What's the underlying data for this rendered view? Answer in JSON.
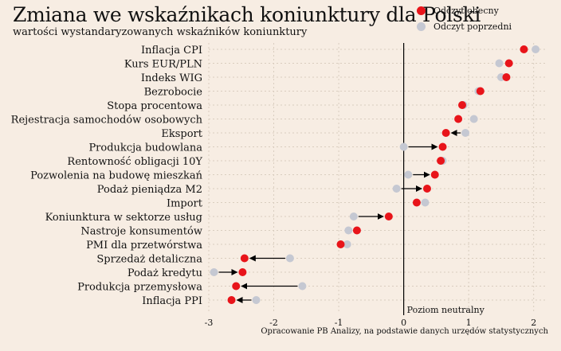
{
  "header": {
    "title": "Zmiana we wskaźnikach koniunktury dla Polski",
    "subtitle": "wartości wystandaryzowanych wskaźników koniunktury"
  },
  "legend": {
    "current": "Odczyt obecny",
    "previous": "Odczyt poprzedni"
  },
  "footer": {
    "source": "Opracowanie PB Analizy, na podstawie danych urzędów statystycznych"
  },
  "colors": {
    "current": "#e8141a",
    "previous": "#c5c8d2",
    "background": "#f7ede3",
    "grid": "#d9cdbf"
  },
  "chart_data": {
    "type": "scatter",
    "subtype": "dumbbell",
    "title": "Zmiana we wskaźnikach koniunktury dla Polski",
    "subtitle": "wartości wystandaryzowanych wskaźników koniunktury",
    "xlim": [
      -3.0,
      2.2
    ],
    "x_ticks": [
      -3,
      -2,
      -1,
      0,
      1,
      2
    ],
    "reference_line": {
      "x": 0,
      "label": "Poziom neutralny"
    },
    "grid": true,
    "legend_position": "top-right",
    "series": [
      {
        "name": "Odczyt obecny",
        "key": "current"
      },
      {
        "name": "Odczyt poprzedni",
        "key": "previous"
      }
    ],
    "categories": [
      "Inflacja CPI",
      "Kurs EUR/PLN",
      "Indeks WIG",
      "Bezrobocie",
      "Stopa procentowa",
      "Rejestracja samochodów osobowych",
      "Eksport",
      "Produkcja budowlana",
      "Rentowność obligacji 10Y",
      "Pozwolenia na budowę mieszkań",
      "Podaż pieniądza M2",
      "Import",
      "Koniunktura w sektorze usług",
      "Nastroje konsumentów",
      "PMI dla przetwórstwa",
      "Sprzedaż detaliczna",
      "Podaż kredytu",
      "Produkcja przemysłowa",
      "Inflacja PPI"
    ],
    "current": [
      1.85,
      1.62,
      1.58,
      1.18,
      0.9,
      0.84,
      0.65,
      0.6,
      0.57,
      0.48,
      0.36,
      0.2,
      -0.23,
      -0.72,
      -0.97,
      -2.45,
      -2.48,
      -2.58,
      -2.65
    ],
    "previous": [
      2.03,
      1.47,
      1.5,
      1.15,
      0.92,
      1.08,
      0.95,
      0.0,
      0.6,
      0.07,
      -0.11,
      0.33,
      -0.77,
      -0.85,
      -0.87,
      -1.75,
      -2.92,
      -1.56,
      -2.27
    ]
  }
}
